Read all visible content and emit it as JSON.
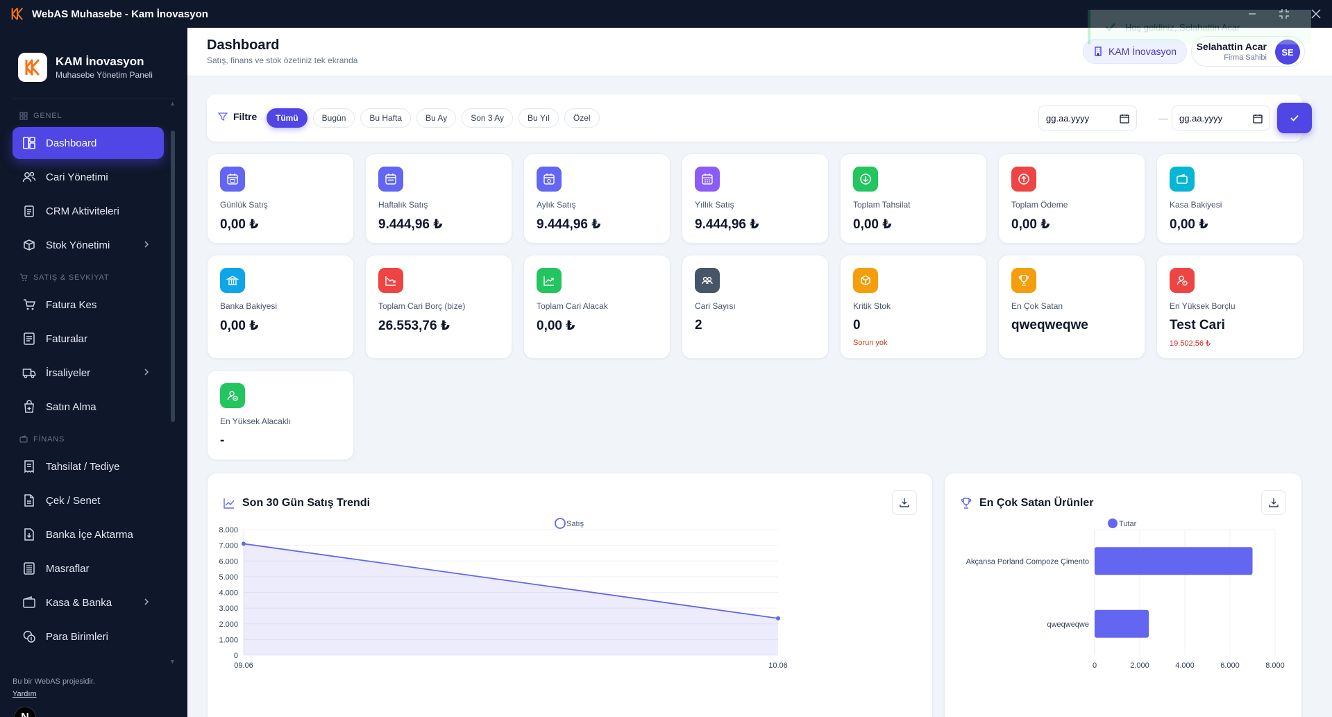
{
  "window": {
    "title": "WebAS Muhasebe - Kam İnovasyon",
    "toast": "Hoş geldiniz, Selahattin Acar"
  },
  "sidebar": {
    "brand_name": "KAM İnovasyon",
    "brand_sub": "Muhasebe Yönetim Paneli",
    "sections": {
      "genel": "GENEL",
      "satis": "SATIŞ & SEVKİYAT",
      "finans": "FİNANS"
    },
    "items": [
      {
        "label": "Dashboard",
        "icon": "dashboard-icon"
      },
      {
        "label": "Cari Yönetimi",
        "icon": "users-icon"
      },
      {
        "label": "CRM Aktiviteleri",
        "icon": "clipboard-icon"
      },
      {
        "label": "Stok Yönetimi",
        "icon": "box-icon"
      },
      {
        "label": "Fatura Kes",
        "icon": "cart-icon"
      },
      {
        "label": "Faturalar",
        "icon": "document-icon"
      },
      {
        "label": "İrsaliyeler",
        "icon": "truck-icon"
      },
      {
        "label": "Satın Alma",
        "icon": "purchase-icon"
      },
      {
        "label": "Tahsilat / Tediye",
        "icon": "receipt-icon"
      },
      {
        "label": "Çek / Senet",
        "icon": "file-icon"
      },
      {
        "label": "Banka İçe Aktarma",
        "icon": "import-icon"
      },
      {
        "label": "Masraflar",
        "icon": "expense-icon"
      },
      {
        "label": "Kasa & Banka",
        "icon": "wallet-icon"
      },
      {
        "label": "Para Birimleri",
        "icon": "coins-icon"
      }
    ],
    "footer_text": "Bu bir WebAS projesidir.",
    "footer_link": "Yardım",
    "badge": "N"
  },
  "header": {
    "title": "Dashboard",
    "subtitle": "Satış, finans ve stok özetiniz tek ekranda",
    "company": "KAM İnovasyon",
    "user_name": "Selahattin Acar",
    "user_role": "Firma Sahibi",
    "avatar_initials": "SE"
  },
  "filter": {
    "label": "Filtre",
    "chips": [
      "Tümü",
      "Bugün",
      "Bu Hafta",
      "Bu Ay",
      "Son 3 Ay",
      "Bu Yıl",
      "Özel"
    ],
    "active_chip": "Tümü",
    "date_from_placeholder": "gg.aa.yyyy",
    "date_to_placeholder": "gg.aa.yyyy",
    "date_separator": "—"
  },
  "stats": [
    {
      "label": "Günlük Satış",
      "value": "0,00 ₺",
      "color": "#6366f1",
      "icon": "calendar-day-icon"
    },
    {
      "label": "Haftalık Satış",
      "value": "9.444,96 ₺",
      "color": "#6366f1",
      "icon": "calendar-week-icon"
    },
    {
      "label": "Aylık Satış",
      "value": "9.444,96 ₺",
      "color": "#6366f1",
      "icon": "calendar-month-icon"
    },
    {
      "label": "Yıllık Satış",
      "value": "9.444,96 ₺",
      "color": "#8b5cf6",
      "icon": "calendar-year-icon"
    },
    {
      "label": "Toplam Tahsilat",
      "value": "0,00 ₺",
      "color": "#22c55e",
      "icon": "arrow-down-circle-icon"
    },
    {
      "label": "Toplam Ödeme",
      "value": "0,00 ₺",
      "color": "#ef4444",
      "icon": "arrow-up-circle-icon"
    },
    {
      "label": "Kasa Bakiyesi",
      "value": "0,00 ₺",
      "color": "#06b6d4",
      "icon": "wallet-icon"
    },
    {
      "label": "Banka Bakiyesi",
      "value": "0,00 ₺",
      "color": "#0ea5e9",
      "icon": "bank-icon"
    },
    {
      "label": "Toplam Cari Borç (bize)",
      "value": "26.553,76 ₺",
      "color": "#ef4444",
      "icon": "trend-down-icon"
    },
    {
      "label": "Toplam Cari Alacak",
      "value": "0,00 ₺",
      "color": "#22c55e",
      "icon": "trend-up-icon"
    },
    {
      "label": "Cari Sayısı",
      "value": "2",
      "color": "#475569",
      "icon": "people-icon"
    },
    {
      "label": "Kritik Stok",
      "value": "0",
      "note": "Sorun yok",
      "color": "#f59e0b",
      "icon": "cube-icon"
    },
    {
      "label": "En Çok Satan",
      "value": "qweqweqwe",
      "color": "#f59e0b",
      "icon": "trophy-icon"
    },
    {
      "label": "En Yüksek Borçlu",
      "value": "Test Cari",
      "note": "19.502,56 ₺",
      "color": "#ef4444",
      "icon": "user-alert-icon"
    },
    {
      "label": "En Yüksek Alacaklı",
      "value": "-",
      "color": "#22c55e",
      "icon": "user-check-icon"
    }
  ],
  "panels": {
    "trend_title": "Son 30 Gün Satış Trendi",
    "top_title": "En Çok Satan Ürünler"
  },
  "chart_data": [
    {
      "type": "area",
      "title": "Son 30 Gün Satış Trendi",
      "x": [
        "09.06",
        "10.06"
      ],
      "series": [
        {
          "name": "Satış",
          "values": [
            7100,
            2350
          ],
          "color": "#6366f1"
        }
      ],
      "yticks": [
        "0",
        "1.000",
        "2.000",
        "3.000",
        "4.000",
        "5.000",
        "6.000",
        "7.000",
        "8.000"
      ],
      "ylim": [
        0,
        8000
      ],
      "grid": true,
      "legend": "top-center"
    },
    {
      "type": "bar",
      "orientation": "horizontal",
      "title": "En Çok Satan Ürünler",
      "categories": [
        "Akçansa Porland Compoze Çimento",
        "qweqweqwe"
      ],
      "series": [
        {
          "name": "Tutar",
          "values": [
            7000,
            2400
          ],
          "color": "#6366f1"
        }
      ],
      "xticks": [
        "0",
        "2.000",
        "4.000",
        "6.000",
        "8.000"
      ],
      "xlim": [
        0,
        8000
      ],
      "grid": true,
      "legend": "top-center"
    }
  ]
}
